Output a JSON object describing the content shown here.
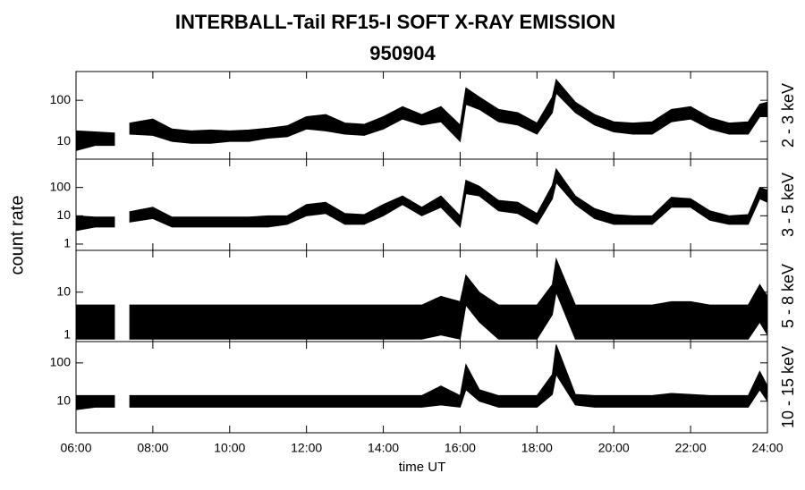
{
  "title": "INTERBALL-Tail RF15-I SOFT X-RAY EMISSION",
  "subtitle": "950904",
  "y_label": "count rate",
  "x_label": "time UT",
  "chart_data": [
    {
      "type": "band",
      "right_label": "2 - 3 keV",
      "log_y": true,
      "color": "#000000",
      "x": [
        6,
        6.5,
        7,
        7.15,
        7.4,
        8,
        8.5,
        9,
        9.5,
        10,
        10.5,
        11,
        11.5,
        12,
        12.5,
        13,
        13.5,
        14,
        14.5,
        15,
        15.5,
        16,
        16.15,
        16.5,
        17,
        17.5,
        18,
        18.4,
        18.5,
        19,
        19.5,
        20,
        20.5,
        21,
        21.5,
        22,
        22.5,
        23,
        23.5,
        23.8,
        24
      ],
      "low": [
        6,
        8,
        8,
        null,
        15,
        14,
        10,
        9,
        9,
        10,
        10,
        12,
        13,
        20,
        18,
        15,
        14,
        20,
        35,
        25,
        30,
        10,
        80,
        60,
        30,
        25,
        15,
        50,
        150,
        50,
        25,
        17,
        15,
        15,
        30,
        35,
        20,
        15,
        15,
        40,
        40
      ],
      "high": [
        18,
        17,
        16,
        null,
        28,
        35,
        20,
        18,
        19,
        18,
        19,
        21,
        24,
        40,
        45,
        28,
        26,
        40,
        70,
        45,
        70,
        25,
        200,
        120,
        60,
        50,
        28,
        120,
        320,
        90,
        45,
        30,
        28,
        30,
        60,
        70,
        38,
        28,
        30,
        80,
        90
      ],
      "xlim": [
        6,
        24
      ],
      "ylim": [
        3.7,
        500
      ],
      "yticks": [
        10,
        100
      ],
      "xticks": [
        {
          "value": 6,
          "label": "06:00"
        },
        {
          "value": 8,
          "label": "08:00"
        },
        {
          "value": 10,
          "label": "10:00"
        },
        {
          "value": 12,
          "label": "12:00"
        },
        {
          "value": 14,
          "label": "14:00"
        },
        {
          "value": 16,
          "label": "16:00"
        },
        {
          "value": 18,
          "label": "18:00"
        },
        {
          "value": 20,
          "label": "20:00"
        },
        {
          "value": 22,
          "label": "22:00"
        },
        {
          "value": 24,
          "label": "24:00"
        }
      ]
    },
    {
      "type": "band",
      "right_label": "3 - 5 keV",
      "log_y": true,
      "color": "#000000",
      "x": [
        6,
        6.5,
        7,
        7.15,
        7.4,
        8,
        8.5,
        9,
        9.5,
        10,
        10.5,
        11,
        11.5,
        12,
        12.5,
        13,
        13.5,
        14,
        14.5,
        15,
        15.5,
        16,
        16.15,
        16.5,
        17,
        17.5,
        18,
        18.4,
        18.5,
        19,
        19.5,
        20,
        20.5,
        21,
        21.5,
        22,
        22.5,
        23,
        23.5,
        23.8,
        24
      ],
      "low": [
        3,
        4,
        4,
        null,
        6,
        8,
        4,
        4,
        4,
        4,
        4,
        4,
        5,
        10,
        12,
        5,
        5,
        10,
        25,
        10,
        20,
        4,
        60,
        50,
        15,
        12,
        5,
        40,
        150,
        25,
        8,
        5,
        5,
        5,
        20,
        20,
        7,
        5,
        5,
        40,
        30
      ],
      "high": [
        10,
        9,
        9,
        null,
        14,
        20,
        9,
        9,
        9,
        9,
        9,
        10,
        10,
        25,
        30,
        12,
        11,
        25,
        50,
        20,
        50,
        10,
        180,
        110,
        35,
        30,
        12,
        120,
        450,
        50,
        18,
        11,
        10,
        10,
        45,
        40,
        15,
        10,
        11,
        100,
        80
      ],
      "xlim": [
        6,
        24
      ],
      "ylim": [
        0.6,
        1000
      ],
      "yticks": [
        1,
        10,
        100
      ],
      "xticks": [
        {
          "value": 6,
          "label": "06:00"
        },
        {
          "value": 8,
          "label": "08:00"
        },
        {
          "value": 10,
          "label": "10:00"
        },
        {
          "value": 12,
          "label": "12:00"
        },
        {
          "value": 14,
          "label": "14:00"
        },
        {
          "value": 16,
          "label": "16:00"
        },
        {
          "value": 18,
          "label": "18:00"
        },
        {
          "value": 20,
          "label": "20:00"
        },
        {
          "value": 22,
          "label": "22:00"
        },
        {
          "value": 24,
          "label": "24:00"
        }
      ]
    },
    {
      "type": "band",
      "right_label": "5 - 8 keV",
      "log_y": true,
      "color": "#000000",
      "x": [
        6,
        6.5,
        7,
        7.15,
        7.4,
        8,
        8.5,
        9,
        9.5,
        10,
        10.5,
        11,
        11.5,
        12,
        12.5,
        13,
        13.5,
        14,
        14.5,
        15,
        15.5,
        16,
        16.15,
        16.5,
        17,
        17.5,
        18,
        18.4,
        18.5,
        19,
        19.5,
        20,
        20.5,
        21,
        21.5,
        22,
        22.5,
        23,
        23.5,
        23.8,
        24
      ],
      "low": [
        0.8,
        0.8,
        0.8,
        null,
        0.8,
        0.8,
        0.8,
        0.8,
        0.8,
        0.8,
        0.8,
        0.8,
        0.8,
        0.8,
        0.8,
        0.8,
        0.8,
        0.8,
        0.8,
        0.8,
        1,
        0.8,
        5,
        2,
        0.8,
        0.8,
        0.8,
        3,
        10,
        0.8,
        0.8,
        0.8,
        0.8,
        0.8,
        0.8,
        0.8,
        0.8,
        0.8,
        0.8,
        2,
        1
      ],
      "high": [
        5,
        5,
        5,
        null,
        5,
        5,
        5,
        5,
        5,
        5,
        5,
        5,
        5,
        5,
        5,
        5,
        5,
        5,
        5,
        5,
        8,
        6,
        25,
        10,
        5,
        5,
        5,
        15,
        60,
        5,
        5,
        5,
        5,
        5,
        6,
        6,
        5,
        5,
        5,
        15,
        8
      ],
      "xlim": [
        6,
        24
      ],
      "ylim": [
        0.7,
        95
      ],
      "yticks": [
        1,
        10
      ],
      "xticks": [
        {
          "value": 6,
          "label": "06:00"
        },
        {
          "value": 8,
          "label": "08:00"
        },
        {
          "value": 10,
          "label": "10:00"
        },
        {
          "value": 12,
          "label": "12:00"
        },
        {
          "value": 14,
          "label": "14:00"
        },
        {
          "value": 16,
          "label": "16:00"
        },
        {
          "value": 18,
          "label": "18:00"
        },
        {
          "value": 20,
          "label": "20:00"
        },
        {
          "value": 22,
          "label": "22:00"
        },
        {
          "value": 24,
          "label": "24:00"
        }
      ]
    },
    {
      "type": "band",
      "right_label": "10 - 15 keV",
      "log_y": true,
      "color": "#000000",
      "x": [
        6,
        6.5,
        7,
        7.15,
        7.4,
        8,
        8.5,
        9,
        9.5,
        10,
        10.5,
        11,
        11.5,
        12,
        12.5,
        13,
        13.5,
        14,
        14.5,
        15,
        15.5,
        16,
        16.15,
        16.5,
        17,
        17.5,
        18,
        18.4,
        18.5,
        19,
        19.5,
        20,
        20.5,
        21,
        21.5,
        22,
        22.5,
        23,
        23.5,
        23.8,
        24
      ],
      "low": [
        6,
        7,
        7,
        null,
        7,
        7,
        7,
        7,
        7,
        7,
        7,
        7,
        7,
        7,
        7,
        7,
        7,
        7,
        7,
        7,
        8,
        7,
        20,
        10,
        7,
        7,
        7,
        15,
        50,
        8,
        7,
        7,
        7,
        7,
        7,
        7,
        7,
        7,
        7,
        20,
        10
      ],
      "high": [
        14,
        14,
        14,
        null,
        14,
        14,
        14,
        14,
        14,
        14,
        14,
        14,
        14,
        14,
        14,
        14,
        14,
        14,
        14,
        14,
        25,
        14,
        90,
        20,
        14,
        14,
        14,
        50,
        300,
        15,
        14,
        14,
        14,
        14,
        16,
        15,
        14,
        14,
        14,
        60,
        25
      ],
      "xlim": [
        6,
        24
      ],
      "ylim": [
        1.5,
        360
      ],
      "yticks": [
        10,
        100
      ],
      "xticks": [
        {
          "value": 6,
          "label": "06:00"
        },
        {
          "value": 8,
          "label": "08:00"
        },
        {
          "value": 10,
          "label": "10:00"
        },
        {
          "value": 12,
          "label": "12:00"
        },
        {
          "value": 14,
          "label": "14:00"
        },
        {
          "value": 16,
          "label": "16:00"
        },
        {
          "value": 18,
          "label": "18:00"
        },
        {
          "value": 20,
          "label": "20:00"
        },
        {
          "value": 22,
          "label": "22:00"
        },
        {
          "value": 24,
          "label": "24:00"
        }
      ]
    }
  ]
}
